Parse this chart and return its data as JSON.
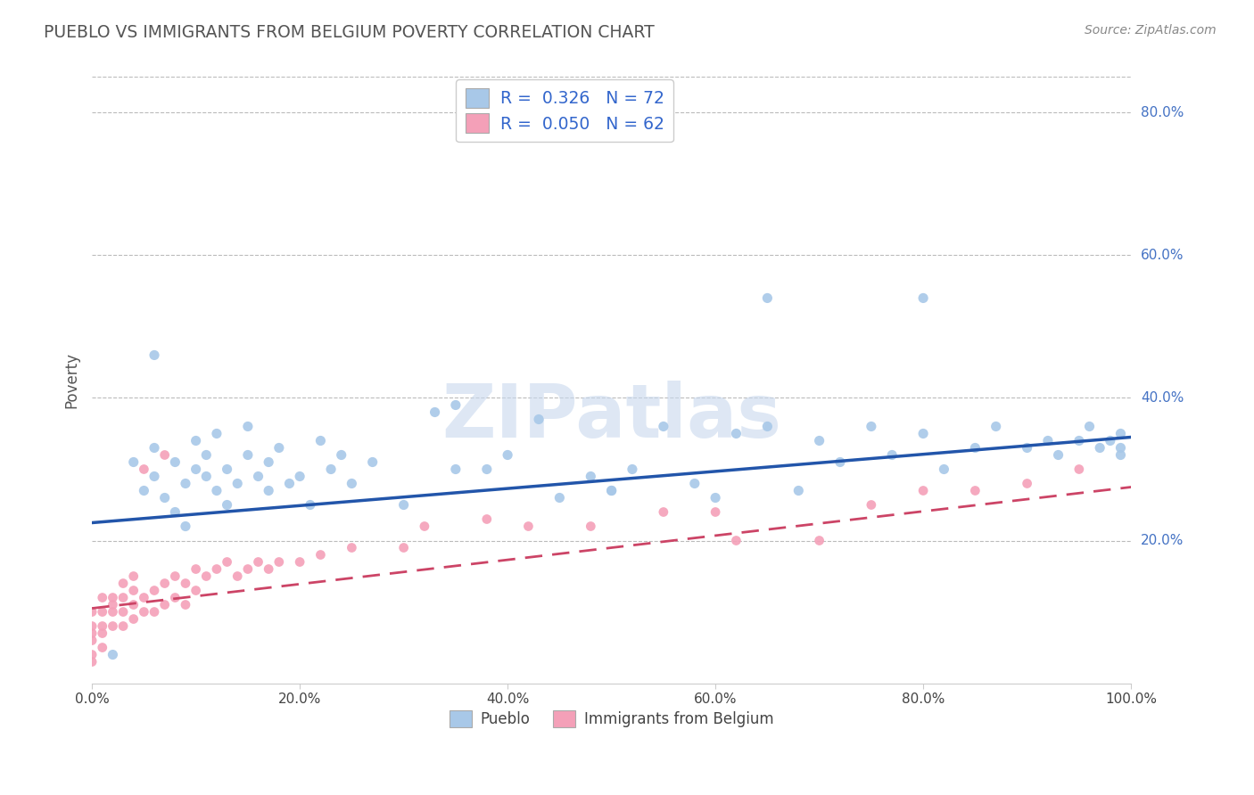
{
  "title": "PUEBLO VS IMMIGRANTS FROM BELGIUM POVERTY CORRELATION CHART",
  "source": "Source: ZipAtlas.com",
  "ylabel": "Poverty",
  "xlim": [
    0,
    1.0
  ],
  "ylim": [
    0,
    0.85
  ],
  "x_ticks": [
    0.0,
    0.2,
    0.4,
    0.6,
    0.8,
    1.0
  ],
  "x_tick_labels": [
    "0.0%",
    "20.0%",
    "40.0%",
    "60.0%",
    "80.0%",
    "100.0%"
  ],
  "y_ticks": [
    0.2,
    0.4,
    0.6,
    0.8
  ],
  "y_tick_labels": [
    "20.0%",
    "40.0%",
    "60.0%",
    "80.0%"
  ],
  "pueblo_color": "#a8c8e8",
  "belgium_color": "#f4a0b8",
  "pueblo_line_color": "#2255aa",
  "belgium_line_color": "#cc4466",
  "R_pueblo": 0.326,
  "N_pueblo": 72,
  "R_belgium": 0.05,
  "N_belgium": 62,
  "watermark_text": "ZIPatlas",
  "pueblo_line_x0": 0.0,
  "pueblo_line_y0": 0.225,
  "pueblo_line_x1": 1.0,
  "pueblo_line_y1": 0.345,
  "belgium_line_x0": 0.0,
  "belgium_line_y0": 0.105,
  "belgium_line_x1": 1.0,
  "belgium_line_y1": 0.275,
  "pueblo_scatter_x": [
    0.02,
    0.04,
    0.05,
    0.06,
    0.06,
    0.07,
    0.08,
    0.08,
    0.09,
    0.09,
    0.1,
    0.1,
    0.11,
    0.11,
    0.12,
    0.12,
    0.13,
    0.13,
    0.14,
    0.15,
    0.15,
    0.16,
    0.17,
    0.17,
    0.18,
    0.19,
    0.2,
    0.21,
    0.22,
    0.23,
    0.24,
    0.25,
    0.27,
    0.3,
    0.33,
    0.35,
    0.38,
    0.4,
    0.43,
    0.45,
    0.48,
    0.5,
    0.52,
    0.55,
    0.58,
    0.6,
    0.62,
    0.65,
    0.68,
    0.7,
    0.72,
    0.75,
    0.77,
    0.8,
    0.82,
    0.85,
    0.87,
    0.9,
    0.92,
    0.93,
    0.95,
    0.96,
    0.97,
    0.98,
    0.99,
    0.99,
    0.99,
    0.06,
    0.35,
    0.5,
    0.65,
    0.8
  ],
  "pueblo_scatter_y": [
    0.04,
    0.31,
    0.27,
    0.33,
    0.29,
    0.26,
    0.24,
    0.31,
    0.28,
    0.22,
    0.3,
    0.34,
    0.29,
    0.32,
    0.27,
    0.35,
    0.25,
    0.3,
    0.28,
    0.36,
    0.32,
    0.29,
    0.31,
    0.27,
    0.33,
    0.28,
    0.29,
    0.25,
    0.34,
    0.3,
    0.32,
    0.28,
    0.31,
    0.25,
    0.38,
    0.3,
    0.3,
    0.32,
    0.37,
    0.26,
    0.29,
    0.27,
    0.3,
    0.36,
    0.28,
    0.26,
    0.35,
    0.36,
    0.27,
    0.34,
    0.31,
    0.36,
    0.32,
    0.35,
    0.3,
    0.33,
    0.36,
    0.33,
    0.34,
    0.32,
    0.34,
    0.36,
    0.33,
    0.34,
    0.35,
    0.32,
    0.33,
    0.46,
    0.39,
    0.27,
    0.54,
    0.54
  ],
  "belgium_scatter_x": [
    0.0,
    0.0,
    0.0,
    0.0,
    0.0,
    0.0,
    0.01,
    0.01,
    0.01,
    0.01,
    0.01,
    0.02,
    0.02,
    0.02,
    0.02,
    0.03,
    0.03,
    0.03,
    0.03,
    0.04,
    0.04,
    0.04,
    0.04,
    0.05,
    0.05,
    0.05,
    0.06,
    0.06,
    0.07,
    0.07,
    0.07,
    0.08,
    0.08,
    0.09,
    0.09,
    0.1,
    0.1,
    0.11,
    0.12,
    0.13,
    0.14,
    0.15,
    0.16,
    0.17,
    0.18,
    0.2,
    0.22,
    0.25,
    0.3,
    0.32,
    0.38,
    0.42,
    0.48,
    0.55,
    0.6,
    0.62,
    0.7,
    0.75,
    0.8,
    0.85,
    0.9,
    0.95
  ],
  "belgium_scatter_y": [
    0.03,
    0.04,
    0.06,
    0.07,
    0.08,
    0.1,
    0.05,
    0.07,
    0.08,
    0.1,
    0.12,
    0.08,
    0.1,
    0.11,
    0.12,
    0.08,
    0.1,
    0.12,
    0.14,
    0.09,
    0.11,
    0.13,
    0.15,
    0.1,
    0.12,
    0.3,
    0.1,
    0.13,
    0.11,
    0.14,
    0.32,
    0.12,
    0.15,
    0.11,
    0.14,
    0.13,
    0.16,
    0.15,
    0.16,
    0.17,
    0.15,
    0.16,
    0.17,
    0.16,
    0.17,
    0.17,
    0.18,
    0.19,
    0.19,
    0.22,
    0.23,
    0.22,
    0.22,
    0.24,
    0.24,
    0.2,
    0.2,
    0.25,
    0.27,
    0.27,
    0.28,
    0.3
  ]
}
